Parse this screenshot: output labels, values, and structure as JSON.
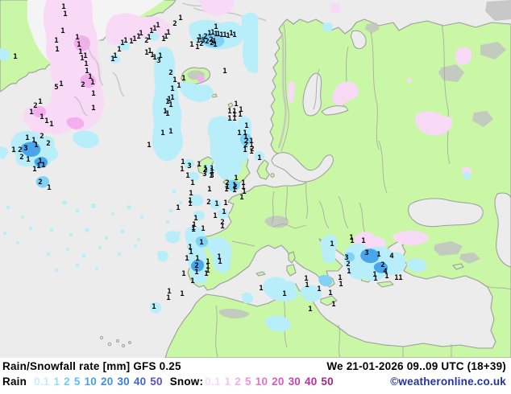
{
  "footer": {
    "title_left": "Rain/Snowfall rate [mm] GFS 0.25",
    "title_right": "We 21-01-2026 09..09 UTC (18+39)",
    "rain_label": "Rain",
    "snow_label": "Snow:",
    "copyright": "©weatheronline.co.uk",
    "rain_scale": [
      {
        "v": "0.1",
        "c": "#c4eefb"
      },
      {
        "v": "1",
        "c": "#8edcf8"
      },
      {
        "v": "2",
        "c": "#70cdf5"
      },
      {
        "v": "5",
        "c": "#58bff2"
      },
      {
        "v": "10",
        "c": "#3fa5ea"
      },
      {
        "v": "20",
        "c": "#3b92e2"
      },
      {
        "v": "30",
        "c": "#3b7ad8"
      },
      {
        "v": "40",
        "c": "#4663cc"
      },
      {
        "v": "50",
        "c": "#5852c0"
      }
    ],
    "snow_scale": [
      {
        "v": "0.1",
        "c": "#f7dbf7"
      },
      {
        "v": "1",
        "c": "#f6c0f2"
      },
      {
        "v": "2",
        "c": "#f4acee"
      },
      {
        "v": "5",
        "c": "#f18ce4"
      },
      {
        "v": "10",
        "c": "#e770d6"
      },
      {
        "v": "20",
        "c": "#d957c6"
      },
      {
        "v": "30",
        "c": "#c742b2"
      },
      {
        "v": "40",
        "c": "#b3329e"
      },
      {
        "v": "50",
        "c": "#9f288a"
      }
    ]
  },
  "map": {
    "legend_units": "mm",
    "model": "GFS 0.25",
    "colors": {
      "sea": "#ececec",
      "land": "#c9f7a5",
      "coast": "#9c9c9c",
      "border": "#ababab",
      "ice": "#f4f4f4",
      "terrain": "#c2c2c2",
      "rain1": "#b7eef9",
      "rain2": "#7fd2f6",
      "rain3": "#49a6ec",
      "snow1": "#f8d9f6",
      "snow2": "#f3aeee",
      "copy": "#2433a0"
    },
    "values": [
      [
        79,
        10
      ],
      [
        81,
        19
      ],
      [
        78,
        40
      ],
      [
        70,
        52
      ],
      [
        71,
        63
      ],
      [
        19,
        72
      ],
      [
        96,
        48
      ],
      [
        98,
        57
      ],
      [
        100,
        66
      ],
      [
        102,
        74
      ],
      [
        106,
        71
      ],
      [
        107,
        81
      ],
      [
        108,
        90
      ],
      [
        112,
        97
      ],
      [
        115,
        104
      ],
      [
        103,
        107,
        "2"
      ],
      [
        76,
        106
      ],
      [
        70,
        110,
        "5"
      ],
      [
        116,
        118
      ],
      [
        116,
        136
      ],
      [
        50,
        128
      ],
      [
        44,
        133,
        "2"
      ],
      [
        39,
        141
      ],
      [
        52,
        147
      ],
      [
        58,
        152
      ],
      [
        64,
        156
      ],
      [
        140,
        75
      ],
      [
        143,
        71
      ],
      [
        148,
        63
      ],
      [
        152,
        55
      ],
      [
        156,
        52
      ],
      [
        163,
        53
      ],
      [
        167,
        50
      ],
      [
        172,
        47
      ],
      [
        175,
        43
      ],
      [
        182,
        52,
        "2"
      ],
      [
        185,
        48
      ],
      [
        188,
        40
      ],
      [
        192,
        37
      ],
      [
        196,
        33
      ],
      [
        203,
        50
      ],
      [
        206,
        47
      ],
      [
        209,
        42
      ],
      [
        217,
        31,
        "2"
      ],
      [
        224,
        24
      ],
      [
        182,
        67
      ],
      [
        186,
        65
      ],
      [
        189,
        70
      ],
      [
        192,
        73
      ],
      [
        197,
        77,
        "3"
      ],
      [
        199,
        71
      ],
      [
        268,
        35
      ],
      [
        248,
        48
      ],
      [
        255,
        47,
        "2"
      ],
      [
        260,
        43
      ],
      [
        264,
        42
      ],
      [
        268,
        44
      ],
      [
        271,
        44
      ],
      [
        275,
        45
      ],
      [
        279,
        45
      ],
      [
        283,
        46
      ],
      [
        287,
        43
      ],
      [
        291,
        45
      ],
      [
        246,
        52
      ],
      [
        252,
        52,
        "3"
      ],
      [
        257,
        53,
        "2"
      ],
      [
        262,
        51,
        "2"
      ],
      [
        266,
        53
      ],
      [
        250,
        56,
        "2"
      ],
      [
        263,
        55,
        "2"
      ],
      [
        267,
        57
      ],
      [
        238,
        57
      ],
      [
        245,
        60
      ],
      [
        212,
        92,
        "2"
      ],
      [
        217,
        101
      ],
      [
        228,
        99
      ],
      [
        222,
        108
      ],
      [
        214,
        112
      ],
      [
        210,
        125
      ],
      [
        214,
        123
      ],
      [
        208,
        128
      ],
      [
        212,
        132
      ],
      [
        205,
        140
      ],
      [
        208,
        143
      ],
      [
        202,
        167
      ],
      [
        212,
        165
      ],
      [
        185,
        182
      ],
      [
        279,
        90
      ],
      [
        293,
        131
      ],
      [
        299,
        138
      ],
      [
        285,
        140
      ],
      [
        291,
        140
      ],
      [
        291,
        144
      ],
      [
        298,
        144
      ],
      [
        285,
        149
      ],
      [
        291,
        149
      ],
      [
        306,
        158
      ],
      [
        297,
        167
      ],
      [
        304,
        167
      ],
      [
        305,
        172
      ],
      [
        306,
        177,
        "2"
      ],
      [
        312,
        177
      ],
      [
        305,
        182,
        "2"
      ],
      [
        312,
        182
      ],
      [
        313,
        187,
        "2"
      ],
      [
        304,
        188
      ],
      [
        312,
        190
      ],
      [
        322,
        198
      ],
      [
        52,
        171,
        "2"
      ],
      [
        60,
        180,
        "2"
      ],
      [
        34,
        173
      ],
      [
        42,
        176
      ],
      [
        45,
        182
      ],
      [
        32,
        186,
        "3"
      ],
      [
        25,
        188,
        "2"
      ],
      [
        17,
        188
      ],
      [
        27,
        197,
        "2"
      ],
      [
        35,
        200
      ],
      [
        50,
        202
      ],
      [
        48,
        208
      ],
      [
        54,
        207
      ],
      [
        43,
        212
      ],
      [
        50,
        228,
        "2"
      ],
      [
        61,
        235
      ],
      [
        255,
        213,
        "2"
      ],
      [
        263,
        214
      ],
      [
        254,
        218,
        "3"
      ],
      [
        262,
        220
      ],
      [
        227,
        203
      ],
      [
        235,
        208,
        "3"
      ],
      [
        226,
        212
      ],
      [
        247,
        206
      ],
      [
        255,
        211
      ],
      [
        263,
        211
      ],
      [
        263,
        220,
        "3"
      ],
      [
        233,
        220
      ],
      [
        239,
        229
      ],
      [
        282,
        229,
        "2"
      ],
      [
        291,
        232
      ],
      [
        281,
        237
      ],
      [
        291,
        238
      ],
      [
        260,
        237
      ],
      [
        293,
        223
      ],
      [
        302,
        229
      ],
      [
        282,
        234
      ],
      [
        292,
        234,
        "2"
      ],
      [
        302,
        234
      ],
      [
        303,
        240
      ],
      [
        300,
        247
      ],
      [
        237,
        242
      ],
      [
        236,
        251
      ],
      [
        236,
        255
      ],
      [
        221,
        260
      ],
      [
        259,
        253,
        "2"
      ],
      [
        269,
        255
      ],
      [
        280,
        254
      ],
      [
        267,
        270
      ],
      [
        278,
        265
      ],
      [
        276,
        278,
        "2"
      ],
      [
        243,
        273
      ],
      [
        241,
        281
      ],
      [
        240,
        287
      ],
      [
        240,
        285
      ],
      [
        252,
        286
      ],
      [
        276,
        283
      ],
      [
        250,
        303
      ],
      [
        236,
        309
      ],
      [
        237,
        315
      ],
      [
        232,
        323
      ],
      [
        245,
        323
      ],
      [
        272,
        321
      ],
      [
        273,
        327
      ],
      [
        258,
        327
      ],
      [
        244,
        332,
        "2"
      ],
      [
        258,
        333
      ],
      [
        258,
        338
      ],
      [
        256,
        342
      ],
      [
        228,
        342
      ],
      [
        244,
        340
      ],
      [
        239,
        351
      ],
      [
        210,
        364
      ],
      [
        209,
        372
      ],
      [
        226,
        367
      ],
      [
        191,
        383
      ],
      [
        324,
        360
      ],
      [
        353,
        367
      ],
      [
        380,
        348
      ],
      [
        381,
        356
      ],
      [
        396,
        361
      ],
      [
        410,
        366
      ],
      [
        422,
        347
      ],
      [
        423,
        355
      ],
      [
        414,
        380
      ],
      [
        385,
        386
      ],
      [
        412,
        305
      ],
      [
        436,
        297
      ],
      [
        437,
        301
      ],
      [
        451,
        301
      ],
      [
        430,
        322,
        "3"
      ],
      [
        432,
        330,
        "2"
      ],
      [
        433,
        339
      ],
      [
        455,
        316,
        "3"
      ],
      [
        470,
        318
      ],
      [
        486,
        320,
        "4"
      ],
      [
        475,
        331,
        "2"
      ],
      [
        478,
        339,
        "4"
      ],
      [
        480,
        345
      ],
      [
        492,
        347
      ],
      [
        465,
        343
      ],
      [
        466,
        348
      ],
      [
        497,
        347
      ]
    ]
  }
}
